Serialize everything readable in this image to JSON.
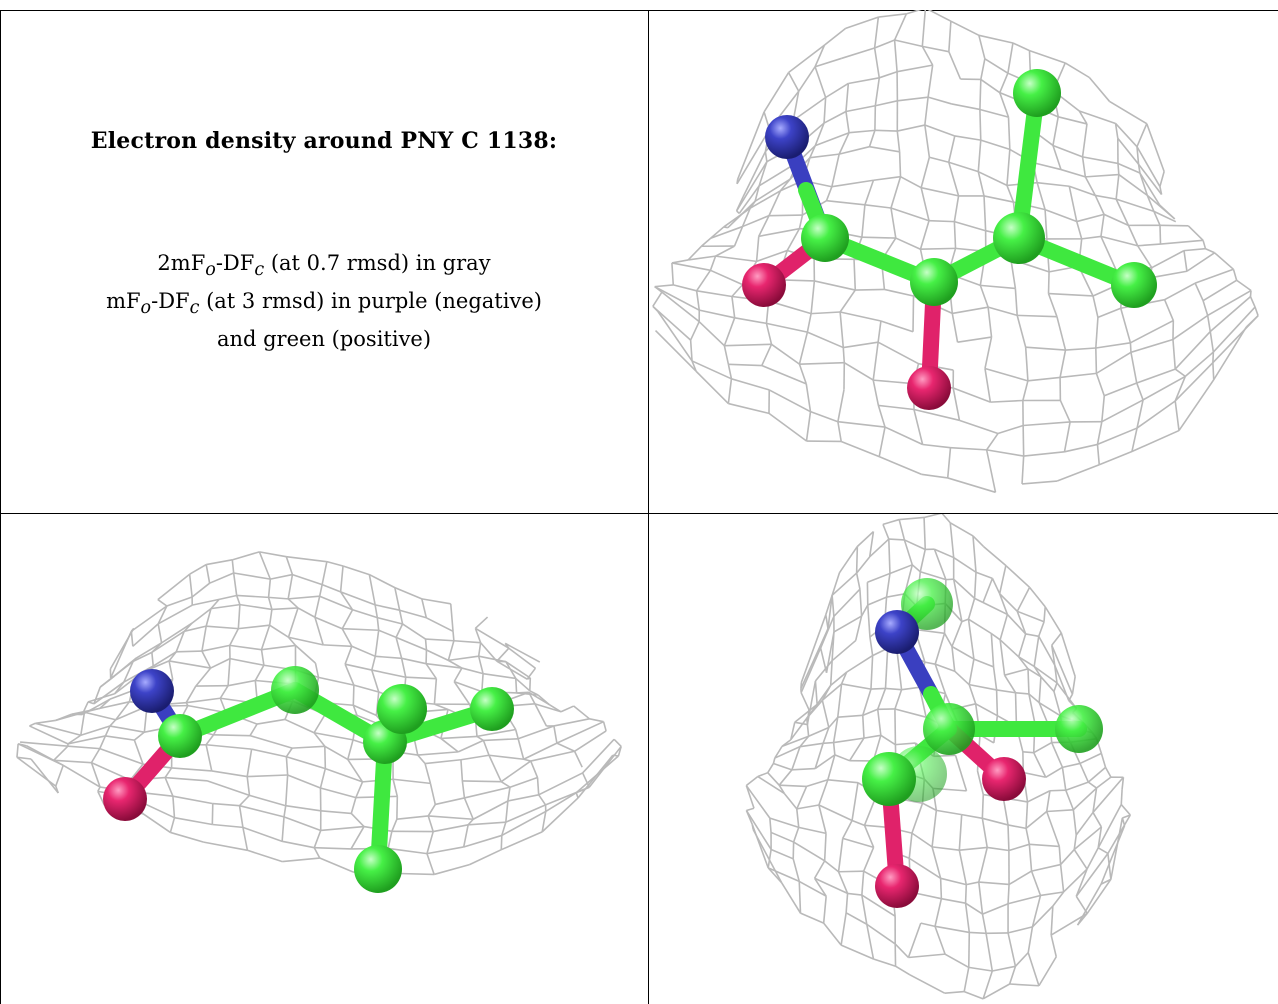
{
  "caption": {
    "title": "Electron density around PNY C 1138:",
    "line1": {
      "a": "2mF",
      "b": "o",
      "c": "-DF",
      "d": "c",
      "e": " (at 0.7 rmsd) in gray"
    },
    "line2": {
      "a": "mF",
      "b": "o",
      "c": "-DF",
      "d": "c",
      "e": " (at 3 rmsd) in purple (negative)"
    },
    "line3": "and green (positive)"
  },
  "colors": {
    "mesh": "#b9b9b9",
    "carbon": "#3fe83f",
    "oxygen": "#e0226a",
    "nitrogen": "#3a3fc0",
    "border": "#000000"
  },
  "views": [
    {
      "name": "view-top-right"
    },
    {
      "name": "view-bottom-left"
    },
    {
      "name": "view-bottom-right"
    }
  ]
}
